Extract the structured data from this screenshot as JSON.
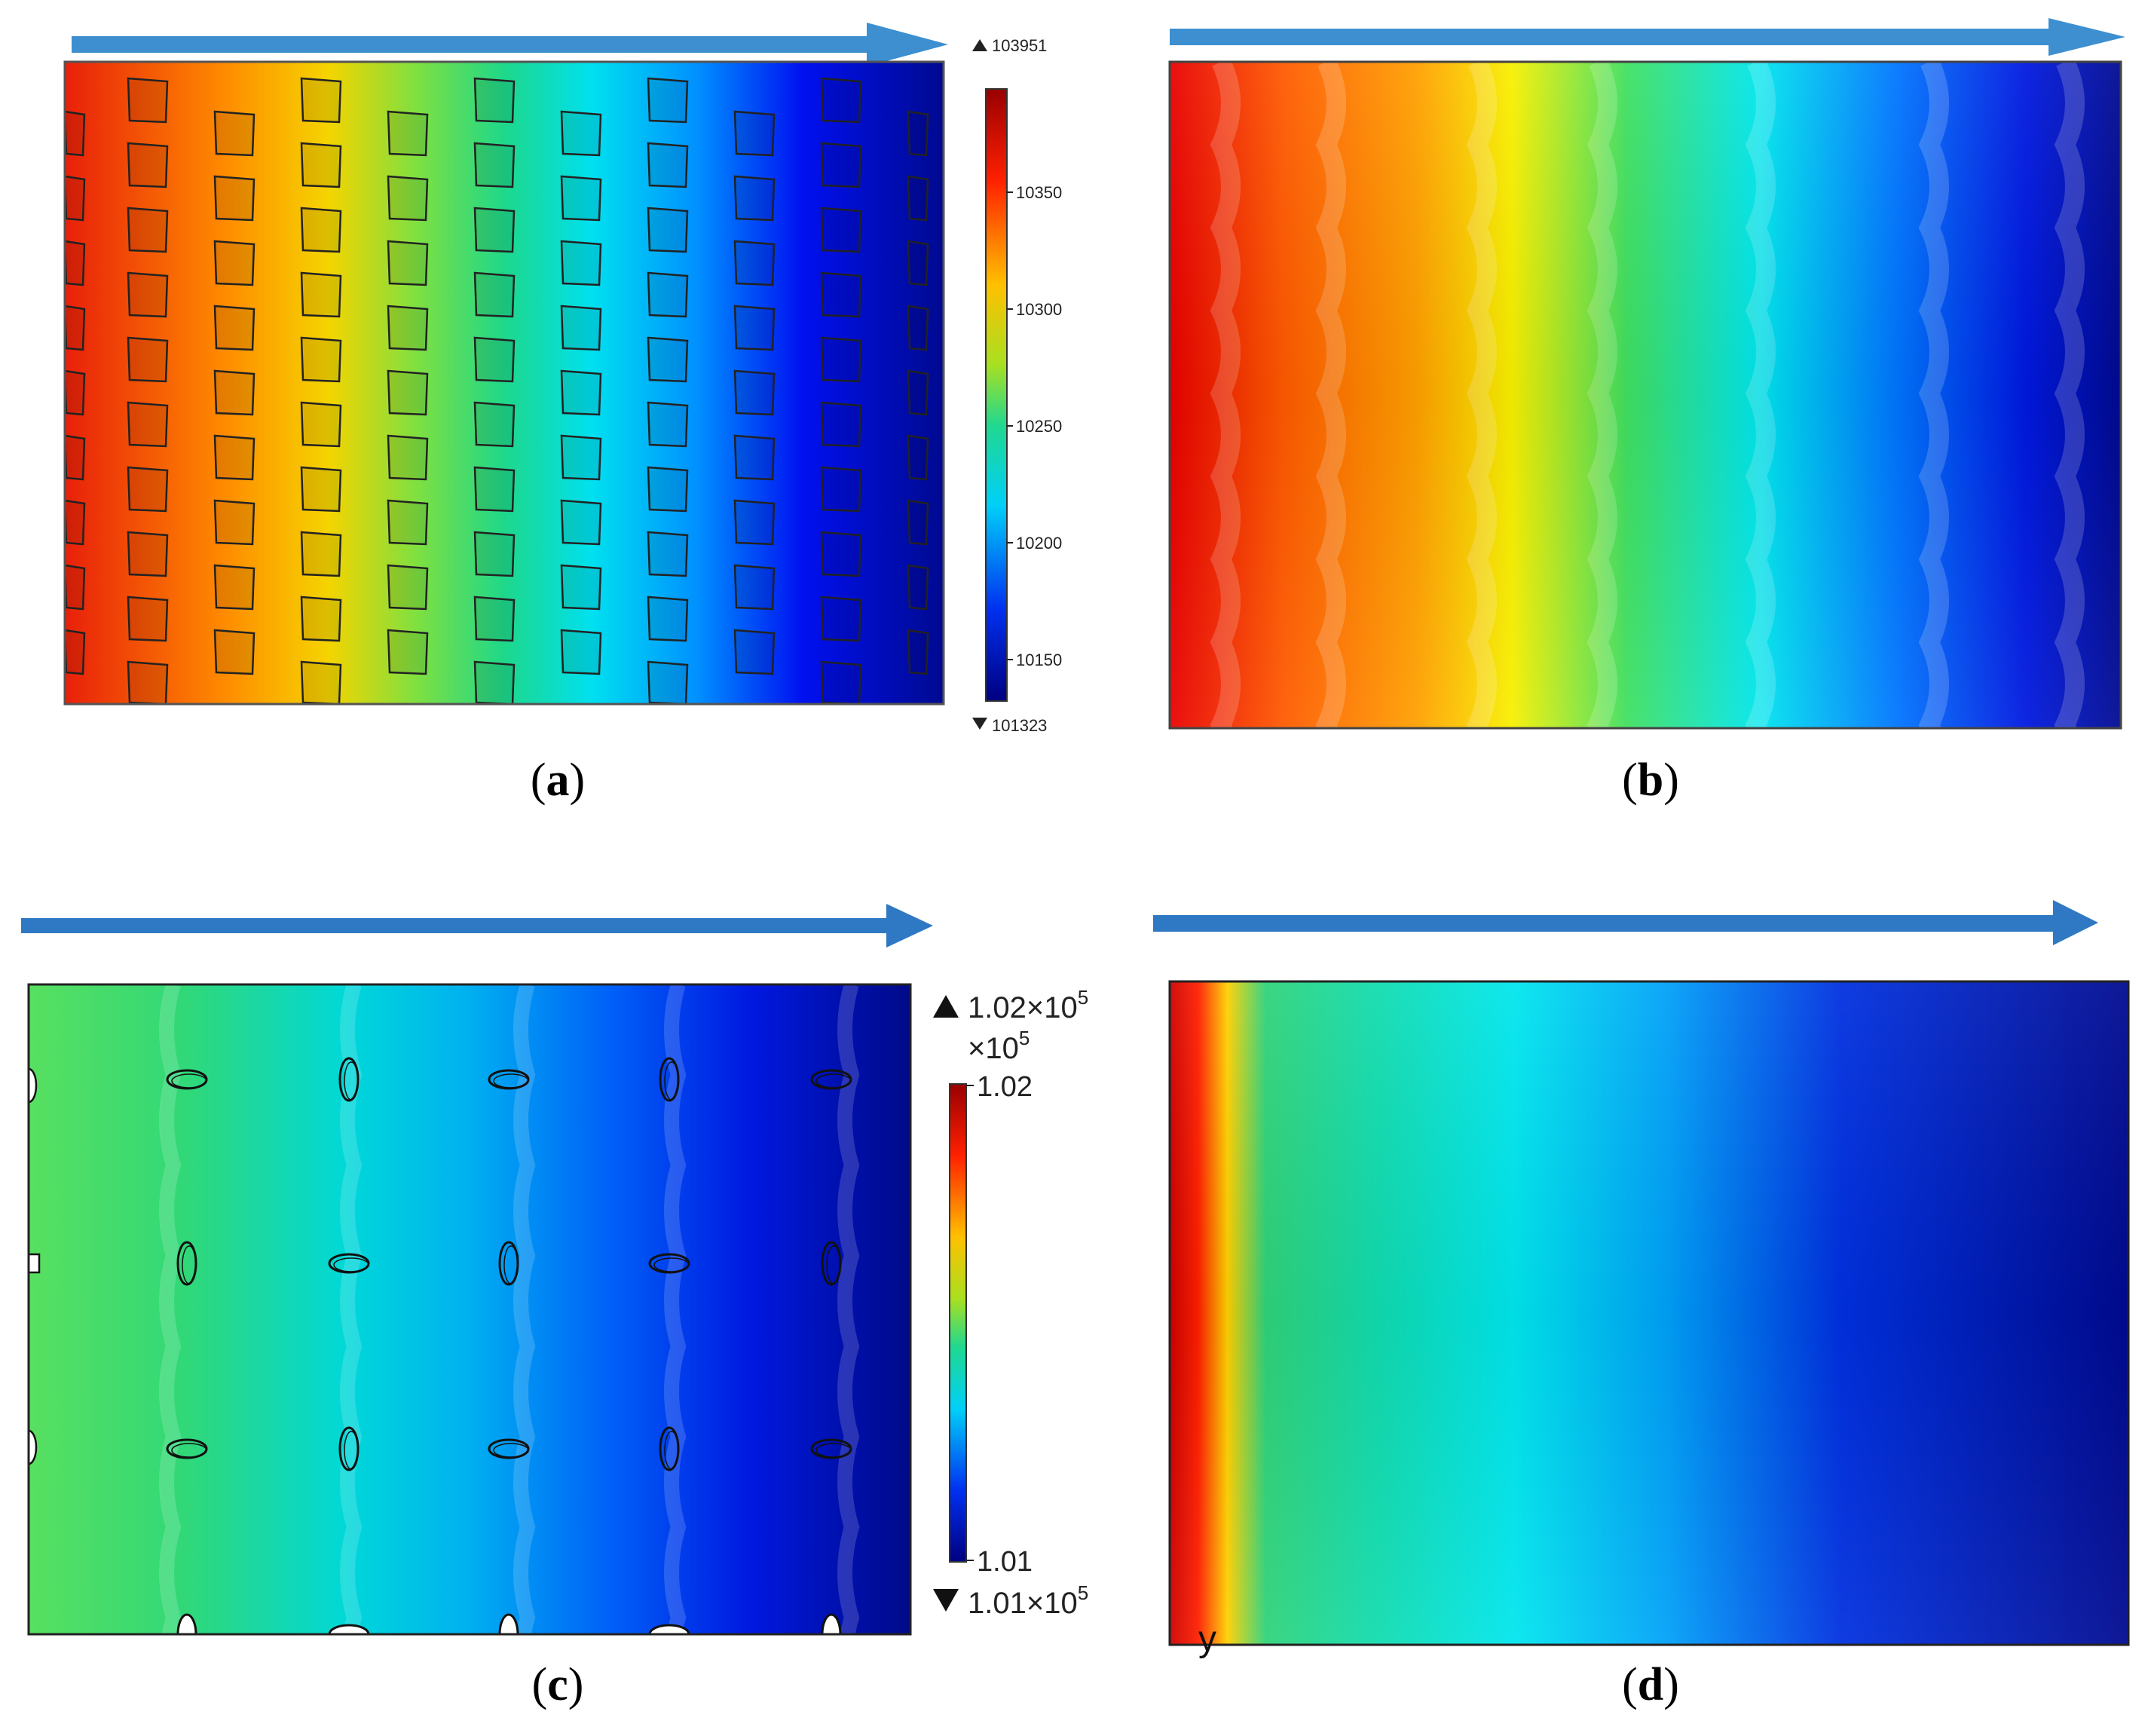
{
  "panels": [
    {
      "id": "a",
      "caption_open": "(",
      "caption_letter": "a",
      "caption_close": ")",
      "colorbar": {
        "max_label": "103951",
        "min_label": "101323",
        "ticks": [
          "10350",
          "10300",
          "10250",
          "10200",
          "10150"
        ]
      }
    },
    {
      "id": "b",
      "caption_open": "(",
      "caption_letter": "b",
      "caption_close": ")"
    },
    {
      "id": "c",
      "caption_open": "(",
      "caption_letter": "c",
      "caption_close": ")",
      "colorbar": {
        "max_label_mantissa": "1.02×10",
        "max_label_exp": "5",
        "scale_mantissa": "×10",
        "scale_exp": "5",
        "top_tick": "1.02",
        "bottom_tick": "1.01",
        "min_label_mantissa": "1.01×10",
        "min_label_exp": "5"
      }
    },
    {
      "id": "d",
      "caption_open": "(",
      "caption_letter": "d",
      "caption_close": ")",
      "axis_glyph": "y"
    }
  ],
  "colors": {
    "flow_arrow": "#3b82c4",
    "jet_red": "#cc0000",
    "jet_yellow": "#f5f000",
    "jet_green": "#2fd36a",
    "jet_cyan": "#00e6ee",
    "jet_blue": "#0030e0",
    "jet_navy": "#000a8a"
  }
}
